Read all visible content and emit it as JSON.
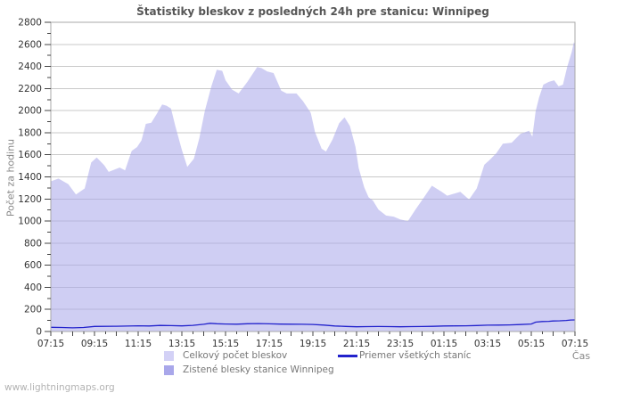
{
  "watermark": "www.lightningmaps.org",
  "chart_data": {
    "type": "area",
    "title": "Štatistiky bleskov z posledných 24h pre stanicu: Winnipeg",
    "xlabel": "Čas",
    "ylabel": "Počet za hodinu",
    "ylim": [
      0,
      2800
    ],
    "y_tick_step": 200,
    "y_minor_tick_step": 100,
    "x_hours_range": [
      0,
      24
    ],
    "x_tick_labels": [
      "07:15",
      "09:15",
      "11:15",
      "13:15",
      "15:15",
      "17:15",
      "19:15",
      "21:15",
      "23:15",
      "01:15",
      "03:15",
      "05:15",
      "07:15"
    ],
    "x_minor_tick_minutes": 30,
    "grid": true,
    "legend_position": "bottom",
    "colors": {
      "grid": "#c9c9c9",
      "border": "#a8a8a8",
      "tick": "#444444",
      "tick_text": "#333333",
      "total_fill": "rgba(168,165,234,0.55)",
      "total_swatch": "#d3d1f6",
      "station_fill": "#a9a7ea",
      "average_line": "#2222cc",
      "title_text": "#555555",
      "axis_title_text": "#888888",
      "legend_text": "#777777",
      "watermark_text": "#b3b3b3"
    },
    "series": [
      {
        "name": "Celkový počet bleskov",
        "kind": "area",
        "points": [
          [
            0,
            1360
          ],
          [
            0.35,
            1385
          ],
          [
            0.8,
            1335
          ],
          [
            1.15,
            1240
          ],
          [
            1.55,
            1295
          ],
          [
            1.85,
            1530
          ],
          [
            2.1,
            1575
          ],
          [
            2.45,
            1505
          ],
          [
            2.65,
            1445
          ],
          [
            3.15,
            1485
          ],
          [
            3.4,
            1460
          ],
          [
            3.7,
            1635
          ],
          [
            3.95,
            1670
          ],
          [
            4.15,
            1730
          ],
          [
            4.35,
            1880
          ],
          [
            4.6,
            1890
          ],
          [
            4.85,
            1970
          ],
          [
            5.1,
            2055
          ],
          [
            5.3,
            2045
          ],
          [
            5.5,
            2020
          ],
          [
            5.7,
            1860
          ],
          [
            6.0,
            1645
          ],
          [
            6.25,
            1490
          ],
          [
            6.55,
            1565
          ],
          [
            6.8,
            1750
          ],
          [
            7.05,
            1995
          ],
          [
            7.35,
            2220
          ],
          [
            7.6,
            2370
          ],
          [
            7.85,
            2360
          ],
          [
            8.0,
            2275
          ],
          [
            8.3,
            2190
          ],
          [
            8.6,
            2155
          ],
          [
            9.0,
            2260
          ],
          [
            9.45,
            2395
          ],
          [
            9.65,
            2385
          ],
          [
            9.9,
            2355
          ],
          [
            10.2,
            2340
          ],
          [
            10.55,
            2180
          ],
          [
            10.8,
            2155
          ],
          [
            11.25,
            2155
          ],
          [
            11.55,
            2085
          ],
          [
            11.9,
            1980
          ],
          [
            12.1,
            1805
          ],
          [
            12.4,
            1655
          ],
          [
            12.6,
            1630
          ],
          [
            12.9,
            1740
          ],
          [
            13.2,
            1885
          ],
          [
            13.45,
            1940
          ],
          [
            13.7,
            1860
          ],
          [
            13.95,
            1670
          ],
          [
            14.1,
            1480
          ],
          [
            14.35,
            1305
          ],
          [
            14.55,
            1215
          ],
          [
            14.75,
            1185
          ],
          [
            15.0,
            1105
          ],
          [
            15.35,
            1050
          ],
          [
            15.7,
            1040
          ],
          [
            16.0,
            1015
          ],
          [
            16.35,
            1000
          ],
          [
            16.7,
            1105
          ],
          [
            17.0,
            1190
          ],
          [
            17.45,
            1320
          ],
          [
            17.9,
            1265
          ],
          [
            18.15,
            1230
          ],
          [
            18.75,
            1265
          ],
          [
            19.15,
            1195
          ],
          [
            19.5,
            1295
          ],
          [
            19.85,
            1510
          ],
          [
            20.1,
            1555
          ],
          [
            20.4,
            1615
          ],
          [
            20.7,
            1700
          ],
          [
            21.1,
            1710
          ],
          [
            21.5,
            1790
          ],
          [
            21.9,
            1818
          ],
          [
            22.05,
            1765
          ],
          [
            22.2,
            1995
          ],
          [
            22.35,
            2115
          ],
          [
            22.55,
            2235
          ],
          [
            22.8,
            2260
          ],
          [
            23.05,
            2275
          ],
          [
            23.25,
            2220
          ],
          [
            23.45,
            2235
          ],
          [
            23.65,
            2400
          ],
          [
            23.85,
            2530
          ],
          [
            23.95,
            2620
          ],
          [
            24,
            2600
          ]
        ]
      },
      {
        "name": "Zistené blesky stanice Winnipeg",
        "kind": "area",
        "points": [
          [
            0,
            0
          ],
          [
            24,
            0
          ]
        ]
      },
      {
        "name": "Priemer všetkých staníc",
        "kind": "line",
        "points": [
          [
            0,
            38
          ],
          [
            0.5,
            36
          ],
          [
            1,
            33
          ],
          [
            1.5,
            36
          ],
          [
            2,
            46
          ],
          [
            3,
            48
          ],
          [
            4,
            52
          ],
          [
            4.5,
            50
          ],
          [
            5,
            55
          ],
          [
            5.5,
            53
          ],
          [
            6,
            51
          ],
          [
            6.5,
            56
          ],
          [
            7,
            65
          ],
          [
            7.3,
            74
          ],
          [
            7.6,
            70
          ],
          [
            8,
            68
          ],
          [
            8.5,
            66
          ],
          [
            9,
            70
          ],
          [
            9.5,
            72
          ],
          [
            10,
            69
          ],
          [
            10.5,
            67
          ],
          [
            11,
            66
          ],
          [
            11.5,
            65
          ],
          [
            12,
            64
          ],
          [
            12.5,
            58
          ],
          [
            13,
            50
          ],
          [
            13.5,
            46
          ],
          [
            14,
            43
          ],
          [
            14.5,
            44
          ],
          [
            15,
            45
          ],
          [
            15.5,
            44
          ],
          [
            16,
            43
          ],
          [
            16.5,
            44
          ],
          [
            17,
            45
          ],
          [
            17.5,
            47
          ],
          [
            18,
            50
          ],
          [
            18.5,
            51
          ],
          [
            19,
            52
          ],
          [
            19.5,
            54
          ],
          [
            20,
            57
          ],
          [
            20.5,
            58
          ],
          [
            21,
            60
          ],
          [
            21.5,
            63
          ],
          [
            22,
            68
          ],
          [
            22.2,
            85
          ],
          [
            22.5,
            90
          ],
          [
            22.8,
            92
          ],
          [
            23,
            95
          ],
          [
            23.3,
            97
          ],
          [
            23.6,
            100
          ],
          [
            23.8,
            104
          ],
          [
            24,
            105
          ]
        ]
      }
    ]
  }
}
